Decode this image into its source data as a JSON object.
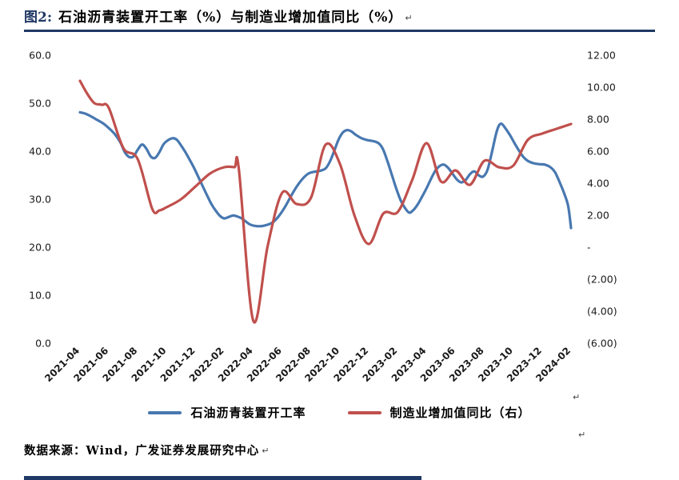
{
  "page": {
    "figure_label": "图2:",
    "figure_title": "石油沥青装置开工率（%）与制造业增加值同比（%）",
    "paragraph_mark": "↵",
    "source_note": "数据来源：Wind，广发证券发展研究中心"
  },
  "colors": {
    "navy": "#1F3864",
    "blue": "#4878B0",
    "red": "#C0504D"
  },
  "chart_data": {
    "type": "line",
    "title": "石油沥青装置开工率（%）与制造业增加值同比（%）",
    "grid": false,
    "legend_position": "bottom",
    "x_unit": "months since 2021-04",
    "x_range": [
      "2021-04",
      "2024-02"
    ],
    "x_tick_labels": [
      "2021-04",
      "2021-06",
      "2021-08",
      "2021-10",
      "2021-12",
      "2022-02",
      "2022-04",
      "2022-06",
      "2022-08",
      "2022-10",
      "2022-12",
      "2023-02",
      "2023-04",
      "2023-06",
      "2023-08",
      "2023-10",
      "2023-12",
      "2024-02"
    ],
    "left_axis": {
      "label": "石油沥青装置开工率（%）",
      "min": 0,
      "max": 60,
      "tick_labels": [
        "60.0",
        "50.0",
        "40.0",
        "30.0",
        "20.0",
        "10.0",
        "0.0"
      ]
    },
    "right_axis": {
      "label": "制造业增加值同比（%）",
      "min": -6,
      "max": 12,
      "tick_labels": [
        "12.00",
        "10.00",
        "8.00",
        "6.00",
        "4.00",
        "2.00",
        "-",
        "(2.00)",
        "(4.00)",
        "(6.00)"
      ]
    },
    "series": [
      {
        "name": "石油沥青装置开工率",
        "axis": "left",
        "color": "#4878B0",
        "line_width": 3.2,
        "points": [
          [
            0,
            48.1
          ],
          [
            0.4,
            47.8
          ],
          [
            0.8,
            47.2
          ],
          [
            1.2,
            46.5
          ],
          [
            1.6,
            45.8
          ],
          [
            2,
            44.8
          ],
          [
            2.4,
            43.6
          ],
          [
            2.8,
            41.8
          ],
          [
            3.1,
            39.8
          ],
          [
            3.4,
            38.8
          ],
          [
            3.7,
            38.9
          ],
          [
            4,
            40.3
          ],
          [
            4.3,
            41.4
          ],
          [
            4.6,
            40.5
          ],
          [
            4.9,
            38.9
          ],
          [
            5.2,
            38.6
          ],
          [
            5.5,
            39.8
          ],
          [
            5.8,
            41.5
          ],
          [
            6.1,
            42.3
          ],
          [
            6.4,
            42.7
          ],
          [
            6.7,
            42.4
          ],
          [
            7,
            41.2
          ],
          [
            7.3,
            39.8
          ],
          [
            7.6,
            38.2
          ],
          [
            7.9,
            36.5
          ],
          [
            8.2,
            34.6
          ],
          [
            8.5,
            32.7
          ],
          [
            8.8,
            30.8
          ],
          [
            9.1,
            29
          ],
          [
            9.4,
            27.6
          ],
          [
            9.7,
            26.5
          ],
          [
            10,
            26
          ],
          [
            10.3,
            26.3
          ],
          [
            10.6,
            26.6
          ],
          [
            10.9,
            26.4
          ],
          [
            11.2,
            26
          ],
          [
            11.5,
            25.3
          ],
          [
            11.8,
            24.7
          ],
          [
            12.2,
            24.4
          ],
          [
            12.6,
            24.4
          ],
          [
            13,
            24.7
          ],
          [
            13.4,
            25.3
          ],
          [
            13.8,
            26.6
          ],
          [
            14.2,
            28.4
          ],
          [
            14.6,
            30.6
          ],
          [
            15,
            32.6
          ],
          [
            15.4,
            34.2
          ],
          [
            15.8,
            35.3
          ],
          [
            16.2,
            35.7
          ],
          [
            16.6,
            35.9
          ],
          [
            17,
            36.4
          ],
          [
            17.3,
            37.8
          ],
          [
            17.6,
            40
          ],
          [
            17.9,
            42.4
          ],
          [
            18.2,
            43.9
          ],
          [
            18.5,
            44.4
          ],
          [
            18.8,
            44.1
          ],
          [
            19.1,
            43.4
          ],
          [
            19.5,
            42.7
          ],
          [
            19.9,
            42.3
          ],
          [
            20.3,
            42.1
          ],
          [
            20.7,
            41.6
          ],
          [
            21,
            40.3
          ],
          [
            21.3,
            37.8
          ],
          [
            21.6,
            35
          ],
          [
            21.9,
            32.2
          ],
          [
            22.2,
            29.8
          ],
          [
            22.5,
            28.2
          ],
          [
            22.8,
            27.2
          ],
          [
            23.1,
            27.8
          ],
          [
            23.4,
            29
          ],
          [
            23.7,
            30.6
          ],
          [
            24,
            32.3
          ],
          [
            24.3,
            34.2
          ],
          [
            24.6,
            35.9
          ],
          [
            24.9,
            36.9
          ],
          [
            25.2,
            37.2
          ],
          [
            25.5,
            36.5
          ],
          [
            25.8,
            35.3
          ],
          [
            26.1,
            34.1
          ],
          [
            26.4,
            33.5
          ],
          [
            26.7,
            34
          ],
          [
            27,
            35.2
          ],
          [
            27.3,
            35.8
          ],
          [
            27.6,
            35
          ],
          [
            27.9,
            34.7
          ],
          [
            28.2,
            36
          ],
          [
            28.5,
            39.5
          ],
          [
            28.8,
            43.5
          ],
          [
            29,
            45.3
          ],
          [
            29.2,
            45.7
          ],
          [
            29.5,
            44.6
          ],
          [
            29.8,
            43.2
          ],
          [
            30.1,
            41.6
          ],
          [
            30.4,
            40.1
          ],
          [
            30.7,
            38.8
          ],
          [
            31,
            38
          ],
          [
            31.4,
            37.5
          ],
          [
            31.8,
            37.3
          ],
          [
            32.2,
            37.2
          ],
          [
            32.6,
            36.6
          ],
          [
            32.9,
            35.6
          ],
          [
            33.2,
            33.6
          ],
          [
            33.5,
            31.4
          ],
          [
            33.8,
            28.6
          ],
          [
            34,
            24
          ]
        ]
      },
      {
        "name": "制造业增加值同比（右）",
        "axis": "right",
        "color": "#C0504D",
        "line_width": 3.2,
        "points": [
          [
            0,
            10.4
          ],
          [
            0.5,
            9.6
          ],
          [
            1,
            9
          ],
          [
            1.5,
            8.9
          ],
          [
            2,
            8.7
          ],
          [
            3,
            6.2
          ],
          [
            4,
            5.5
          ],
          [
            5,
            2.4
          ],
          [
            5.5,
            2.3
          ],
          [
            6,
            2.5
          ],
          [
            7,
            3
          ],
          [
            8,
            3.8
          ],
          [
            9,
            4.6
          ],
          [
            10,
            5
          ],
          [
            10.7,
            5
          ],
          [
            11,
            4.9
          ],
          [
            12,
            -4.6
          ],
          [
            13,
            0.1
          ],
          [
            14,
            3.4
          ],
          [
            15,
            2.7
          ],
          [
            16,
            3.1
          ],
          [
            17,
            6.4
          ],
          [
            18,
            5.2
          ],
          [
            19,
            2
          ],
          [
            20,
            0.2
          ],
          [
            21,
            2.1
          ],
          [
            22,
            2.2
          ],
          [
            23,
            4.2
          ],
          [
            24,
            6.5
          ],
          [
            25,
            4.1
          ],
          [
            26,
            4.8
          ],
          [
            27,
            3.9
          ],
          [
            28,
            5.4
          ],
          [
            29,
            5
          ],
          [
            30,
            5.1
          ],
          [
            31,
            6.7
          ],
          [
            32,
            7.1
          ],
          [
            33,
            7.4
          ],
          [
            34,
            7.7
          ]
        ]
      }
    ],
    "legend": [
      "石油沥青装置开工率",
      "制造业增加值同比（右）"
    ]
  }
}
